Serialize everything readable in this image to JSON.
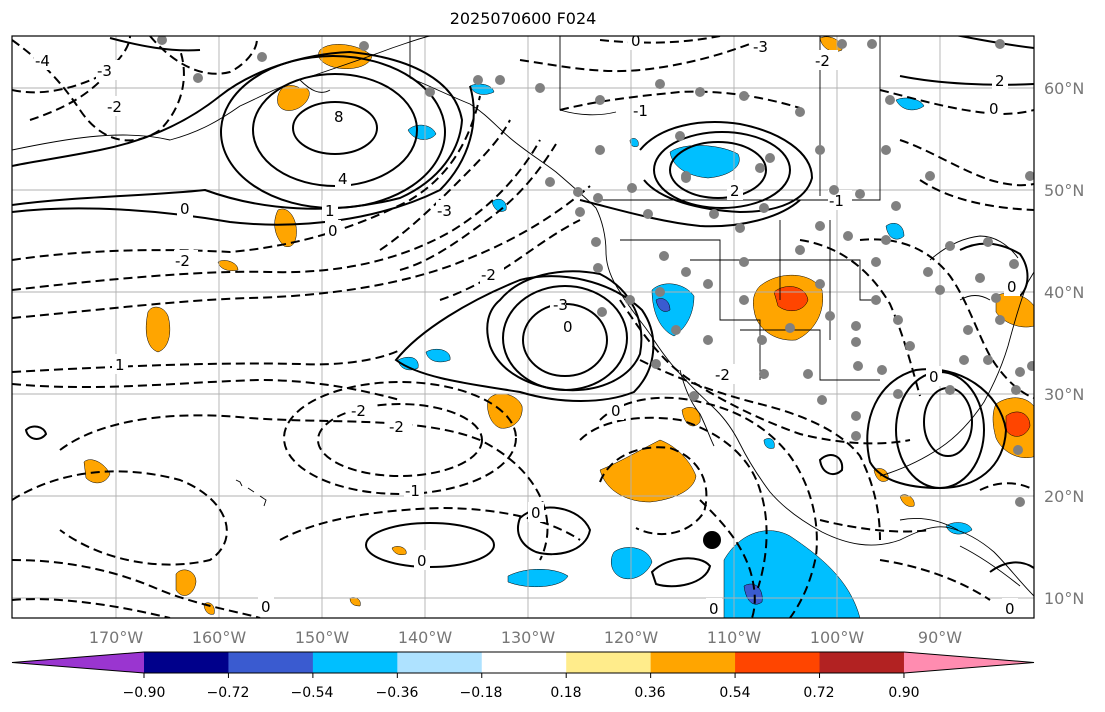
{
  "title": "2025070600 F024",
  "longitude_labels": [
    "170°W",
    "160°W",
    "150°W",
    "140°W",
    "130°W",
    "120°W",
    "110°W",
    "100°W",
    "90°W"
  ],
  "latitude_labels": [
    "60°N",
    "50°N",
    "40°N",
    "30°N",
    "20°N",
    "10°N"
  ],
  "contour_labels": [
    "8",
    "4",
    "2",
    "1",
    "0",
    "-1",
    "-2",
    "-3",
    "-4"
  ],
  "colorbar": {
    "ticks": [
      "−0.90",
      "−0.72",
      "−0.54",
      "−0.36",
      "−0.18",
      "0.18",
      "0.36",
      "0.54",
      "0.72",
      "0.90"
    ],
    "colors": [
      "#9a35d0",
      "#00008b",
      "#3a5bd0",
      "#00bfff",
      "#aee2ff",
      "#ffffff",
      "#ffec8b",
      "#ffa500",
      "#ff4500",
      "#b22222",
      "#ff8cb0"
    ]
  },
  "colors": {
    "orange": "#ffa500",
    "red": "#ff4500",
    "deepskyblue": "#00bfff",
    "royalblue": "#3a5bd0",
    "station_dot": "#808080",
    "grid": "#b0b0b0"
  }
}
